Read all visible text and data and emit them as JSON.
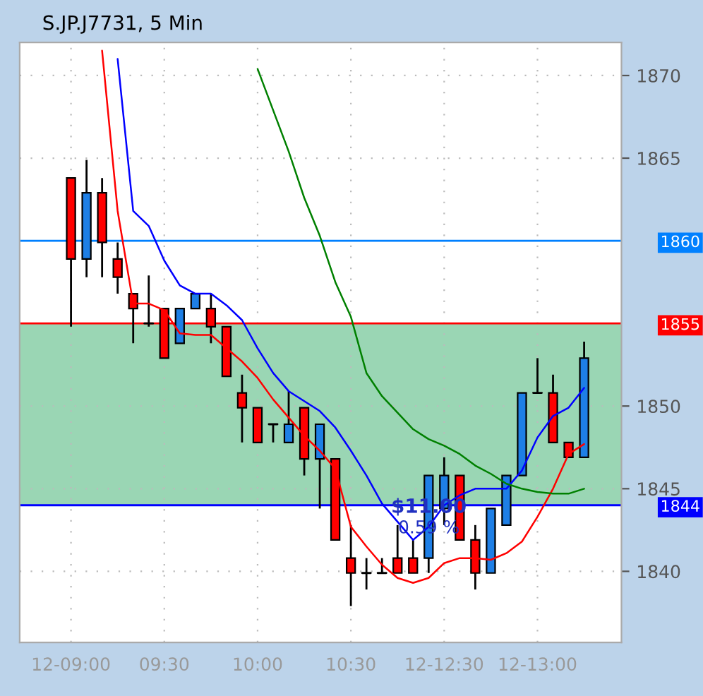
{
  "chart_data": {
    "type": "candlestick",
    "title": "S.JP.J7731, 5 Min",
    "categories": [
      "12-09:00",
      null,
      null,
      null,
      null,
      null,
      "09:30",
      null,
      null,
      null,
      null,
      null,
      "10:00",
      null,
      null,
      null,
      null,
      null,
      "10:30",
      null,
      null,
      null,
      null,
      null,
      "12-12:30",
      null,
      null,
      null,
      null,
      null,
      "12-13:00",
      null,
      null,
      null
    ],
    "ohlc": [
      [
        1863.8,
        1863.8,
        1854.8,
        1858.9
      ],
      [
        1858.9,
        1864.9,
        1857.8,
        1862.9
      ],
      [
        1862.9,
        1863.8,
        1857.8,
        1859.9
      ],
      [
        1858.9,
        1859.9,
        1856.8,
        1857.8
      ],
      [
        1856.8,
        1856.8,
        1853.8,
        1855.9
      ],
      [
        1855,
        1857.9,
        1854.8,
        1855
      ],
      [
        1855.9,
        1855.9,
        1852.9,
        1852.9
      ],
      [
        1853.8,
        1855.9,
        1853.8,
        1855.9
      ],
      [
        1855.9,
        1856.8,
        1855.9,
        1856.8
      ],
      [
        1855.9,
        1856.8,
        1853.8,
        1854.8
      ],
      [
        1854.8,
        1854.8,
        1851.8,
        1851.8
      ],
      [
        1850.8,
        1851.9,
        1847.8,
        1849.9
      ],
      [
        1849.9,
        1849.9,
        1847.8,
        1847.8
      ],
      [
        1848.9,
        1848.9,
        1847.8,
        1848.9
      ],
      [
        1847.8,
        1850.9,
        1847.8,
        1848.9
      ],
      [
        1849.9,
        1849.9,
        1845.8,
        1846.8
      ],
      [
        1846.8,
        1848.9,
        1843.8,
        1848.9
      ],
      [
        1846.8,
        1846.8,
        1841.9,
        1841.9
      ],
      [
        1840.8,
        1842.8,
        1837.9,
        1839.9
      ],
      [
        1839.9,
        1840.8,
        1838.9,
        1839.9
      ],
      [
        1839.9,
        1840.8,
        1839.9,
        1839.9
      ],
      [
        1840.8,
        1842.8,
        1839.9,
        1839.9
      ],
      [
        1840.8,
        1841.9,
        1839.9,
        1839.9
      ],
      [
        1840.8,
        1845.8,
        1839.9,
        1845.8
      ],
      [
        1843.8,
        1846.9,
        1842.8,
        1845.8
      ],
      [
        1845.8,
        1845.8,
        1841.9,
        1841.9
      ],
      [
        1841.9,
        1842.8,
        1838.9,
        1839.9
      ],
      [
        1839.9,
        1843.8,
        1839.9,
        1843.8
      ],
      [
        1842.8,
        1845.8,
        1842.8,
        1845.8
      ],
      [
        1845.8,
        1850.8,
        1845.8,
        1850.8
      ],
      [
        1850.8,
        1852.9,
        1850.8,
        1850.8
      ],
      [
        1850.8,
        1851.9,
        1847.8,
        1847.8
      ],
      [
        1847.8,
        1847.8,
        1846.9,
        1846.9
      ],
      [
        1846.9,
        1853.9,
        1846.9,
        1852.9
      ]
    ],
    "series": [
      {
        "type": "line",
        "color": "#ff0000",
        "values": [
          null,
          null,
          1871.5,
          1861.8,
          1856.2,
          1856.2,
          1855.8,
          1854.4,
          1854.3,
          1854.3,
          1853.5,
          1852.7,
          1851.7,
          1850.4,
          1849.3,
          1848.2,
          1847.3,
          1846.2,
          1842.7,
          1841.5,
          1840.4,
          1839.6,
          1839.3,
          1839.6,
          1840.5,
          1840.8,
          1840.8,
          1840.7,
          1841.1,
          1841.8,
          1843.3,
          1845,
          1847.1,
          1847.7
        ]
      },
      {
        "type": "line",
        "color": "#0000ff",
        "values": [
          null,
          null,
          null,
          1871,
          1861.8,
          1860.9,
          1858.8,
          1857.3,
          1856.8,
          1856.8,
          1856.1,
          1855.2,
          1853.5,
          1852,
          1850.9,
          1850.3,
          1849.7,
          1848.7,
          1847.3,
          1845.8,
          1844.1,
          1843,
          1841.9,
          1842.7,
          1844,
          1844.6,
          1845,
          1845,
          1845,
          1846.1,
          1848.1,
          1849.4,
          1849.9,
          1851.1
        ]
      },
      {
        "type": "line",
        "color": "#008000",
        "values": [
          null,
          null,
          null,
          null,
          null,
          null,
          null,
          null,
          null,
          null,
          null,
          null,
          1870.4,
          1867.9,
          1865.4,
          1862.6,
          1860.3,
          1857.5,
          1855.4,
          1852,
          1850.6,
          1849.6,
          1848.6,
          1848,
          1847.6,
          1847.1,
          1846.4,
          1845.9,
          1845.3,
          1845,
          1844.8,
          1844.7,
          1844.7,
          1845
        ]
      }
    ],
    "ylim": [
      1835.7,
      1872
    ],
    "yticks": [
      1840,
      1845,
      1850,
      1865,
      1870
    ],
    "ref_lines": [
      {
        "axis": "y",
        "value": 1860,
        "label": "1860",
        "color": "#0080ff"
      },
      {
        "axis": "y",
        "value": 1855,
        "label": "1855",
        "color": "#ff0000"
      },
      {
        "axis": "y",
        "value": 1844,
        "label": "1844",
        "color": "#0000ff"
      }
    ],
    "bands": [
      {
        "axis": "y",
        "from": 1844,
        "to": 1855,
        "color": "#9ad6b4"
      }
    ],
    "annotations": [
      "$11.00",
      "0.59 %"
    ],
    "grid": true,
    "legend": false
  }
}
